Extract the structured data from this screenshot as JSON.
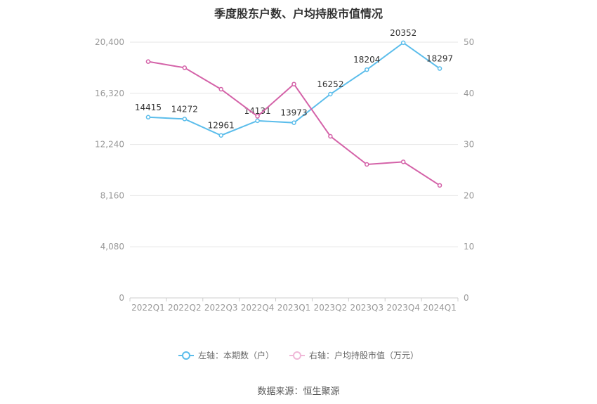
{
  "chart_data": {
    "type": "line",
    "title": "季度股东户数、户均持股市值情况",
    "categories": [
      "2022Q1",
      "2022Q2",
      "2022Q3",
      "2022Q4",
      "2023Q1",
      "2023Q2",
      "2023Q3",
      "2023Q4",
      "2024Q1"
    ],
    "left_axis": {
      "min": 0,
      "max": 20400,
      "ticks": [
        "0",
        "4,080",
        "8,160",
        "12,240",
        "16,320",
        "20,400"
      ]
    },
    "right_axis": {
      "min": 0,
      "max": 50,
      "ticks": [
        "0",
        "10",
        "20",
        "30",
        "40",
        "50"
      ]
    },
    "grid": true,
    "legend_position": "bottom",
    "series": [
      {
        "name": "左轴：本期数（户）",
        "axis": "left",
        "color": "#5bbdeb",
        "values": [
          14415,
          14272,
          12961,
          14131,
          13973,
          16252,
          18204,
          20352,
          18297
        ],
        "labels": [
          "14415",
          "14272",
          "12961",
          "14131",
          "13973",
          "16252",
          "18204",
          "20352",
          "18297"
        ]
      },
      {
        "name": "右轴：户均持股市值（万元）",
        "axis": "right",
        "color": "#d462a8",
        "values": [
          46.2,
          45.0,
          40.8,
          35.5,
          41.8,
          31.6,
          26.1,
          26.6,
          22.0
        ]
      }
    ]
  },
  "legend": {
    "left": "左轴：本期数（户）",
    "right": "右轴：户均持股市值（万元）"
  },
  "source": "数据来源：恒生聚源"
}
